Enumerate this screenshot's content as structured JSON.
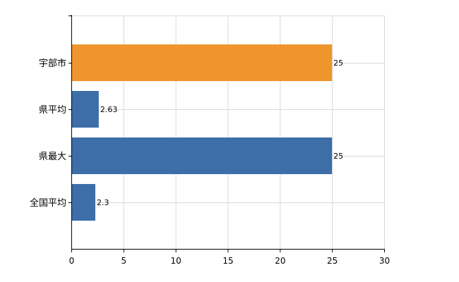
{
  "chart_data": {
    "type": "bar",
    "orientation": "horizontal",
    "categories": [
      "宇部市",
      "県平均",
      "県最大",
      "全国平均"
    ],
    "values": [
      25,
      2.63,
      25,
      2.3
    ],
    "value_labels": [
      "25",
      "2.63",
      "25",
      "2.3"
    ],
    "bar_colors": [
      "#f0952d",
      "#3d6ea8",
      "#3d6ea8",
      "#3d6ea8"
    ],
    "xlim": [
      0,
      30
    ],
    "x_ticks": [
      0,
      5,
      10,
      15,
      20,
      25,
      30
    ],
    "grid": true,
    "title": "",
    "xlabel": "",
    "ylabel": ""
  }
}
